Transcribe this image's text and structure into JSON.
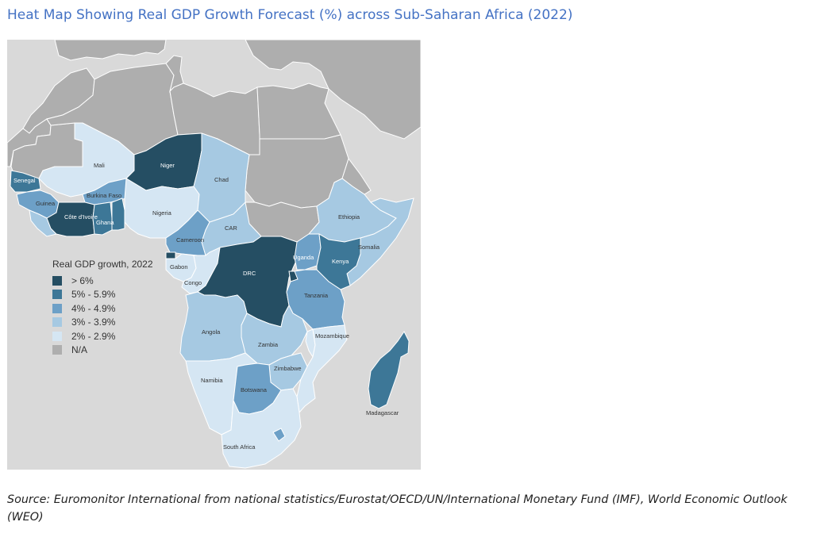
{
  "title": "Heat Map Showing Real GDP Growth Forecast (%) across Sub-Saharan Africa (2022)",
  "source": "Source: Euromonitor International from national statistics/Eurostat/OECD/UN/International Monetary Fund (IMF), World Economic Outlook (WEO)",
  "colors": {
    "background": "#d9d9d9",
    "na": "#aeaeae",
    "border": "#ffffff",
    "title": "#4472c4"
  },
  "legend": {
    "title": "Real GDP growth, 2022",
    "items": [
      {
        "label": "> 6%",
        "color": "#254e63"
      },
      {
        "label": "5% - 5.9%",
        "color": "#3d7797"
      },
      {
        "label": "4% - 4.9%",
        "color": "#6da0c7"
      },
      {
        "label": "3% - 3.9%",
        "color": "#a6c9e2"
      },
      {
        "label": "2% - 2.9%",
        "color": "#d5e6f3"
      },
      {
        "label": "N/A",
        "color": "#aeaeae"
      }
    ]
  },
  "map": {
    "countries": [
      {
        "name": "Senegal",
        "category": "5% - 5.9%"
      },
      {
        "name": "Guinea",
        "category": "4% - 4.9%"
      },
      {
        "name": "Mali",
        "category": "2% - 2.9%"
      },
      {
        "name": "Burkina Faso",
        "category": "4% - 4.9%"
      },
      {
        "name": "Côte d'Ivoire",
        "category": "> 6%"
      },
      {
        "name": "Ghana",
        "category": "5% - 5.9%"
      },
      {
        "name": "Niger",
        "category": "> 6%"
      },
      {
        "name": "Nigeria",
        "category": "2% - 2.9%"
      },
      {
        "name": "Chad",
        "category": "3% - 3.9%"
      },
      {
        "name": "Cameroon",
        "category": "4% - 4.9%"
      },
      {
        "name": "CAR",
        "category": "3% - 3.9%"
      },
      {
        "name": "Gabon",
        "category": "2% - 2.9%"
      },
      {
        "name": "Congo",
        "category": "2% - 2.9%"
      },
      {
        "name": "DRC",
        "category": "> 6%"
      },
      {
        "name": "Ethiopia",
        "category": "3% - 3.9%"
      },
      {
        "name": "Somalia",
        "category": "3% - 3.9%"
      },
      {
        "name": "Uganda",
        "category": "4% - 4.9%"
      },
      {
        "name": "Kenya",
        "category": "5% - 5.9%"
      },
      {
        "name": "Tanzania",
        "category": "4% - 4.9%"
      },
      {
        "name": "Angola",
        "category": "3% - 3.9%"
      },
      {
        "name": "Zambia",
        "category": "3% - 3.9%"
      },
      {
        "name": "Mozambique",
        "category": "2% - 2.9%"
      },
      {
        "name": "Zimbabwe",
        "category": "3% - 3.9%"
      },
      {
        "name": "Namibia",
        "category": "2% - 2.9%"
      },
      {
        "name": "Botswana",
        "category": "4% - 4.9%"
      },
      {
        "name": "Madagascar",
        "category": "5% - 5.9%"
      },
      {
        "name": "South Africa",
        "category": "2% - 2.9%"
      }
    ]
  }
}
